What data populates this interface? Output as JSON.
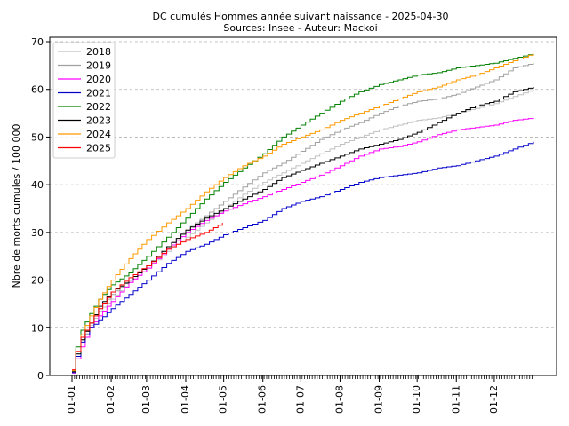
{
  "chart_data": {
    "type": "line",
    "title": "DC cumulés Hommes année suivant naissance  - 2025-04-30",
    "subtitle": "Sources: Insee - Auteur: Mackoi",
    "xlabel": "",
    "ylabel": "Nbre de morts cumules / 100 000",
    "xlim": [
      0,
      365
    ],
    "ylim": [
      0,
      70
    ],
    "yticks": [
      0,
      10,
      20,
      30,
      40,
      50,
      60,
      70
    ],
    "xticks": [
      {
        "day": 0,
        "label": "01-01"
      },
      {
        "day": 31,
        "label": "01-02"
      },
      {
        "day": 59,
        "label": "01-03"
      },
      {
        "day": 90,
        "label": "01-04"
      },
      {
        "day": 120,
        "label": "01-05"
      },
      {
        "day": 151,
        "label": "01-06"
      },
      {
        "day": 181,
        "label": "01-07"
      },
      {
        "day": 212,
        "label": "01-08"
      },
      {
        "day": 243,
        "label": "01-09"
      },
      {
        "day": 273,
        "label": "01-10"
      },
      {
        "day": 304,
        "label": "01-11"
      },
      {
        "day": 334,
        "label": "01-12"
      }
    ],
    "grid": "y-dashed",
    "legend_position": "top-left",
    "series": [
      {
        "name": "2018",
        "color": "#c0c0c0",
        "points": [
          [
            0,
            0.5
          ],
          [
            3,
            4
          ],
          [
            7,
            7
          ],
          [
            14,
            10.5
          ],
          [
            21,
            13.5
          ],
          [
            31,
            16
          ],
          [
            45,
            19.5
          ],
          [
            59,
            22.5
          ],
          [
            75,
            26
          ],
          [
            90,
            29
          ],
          [
            105,
            32
          ],
          [
            120,
            35
          ],
          [
            135,
            38
          ],
          [
            151,
            40.5
          ],
          [
            166,
            42.5
          ],
          [
            181,
            44.5
          ],
          [
            196,
            46.5
          ],
          [
            212,
            48.5
          ],
          [
            227,
            50
          ],
          [
            243,
            51.5
          ],
          [
            258,
            52.5
          ],
          [
            273,
            53.5
          ],
          [
            289,
            54
          ],
          [
            304,
            55
          ],
          [
            319,
            56
          ],
          [
            334,
            57
          ],
          [
            349,
            58.5
          ],
          [
            365,
            60
          ]
        ]
      },
      {
        "name": "2019",
        "color": "#a0a0a0",
        "points": [
          [
            0,
            0.8
          ],
          [
            3,
            4.5
          ],
          [
            7,
            7.5
          ],
          [
            14,
            11
          ],
          [
            21,
            14
          ],
          [
            31,
            17
          ],
          [
            45,
            20
          ],
          [
            59,
            23
          ],
          [
            75,
            27
          ],
          [
            90,
            30.5
          ],
          [
            105,
            33.5
          ],
          [
            120,
            36.5
          ],
          [
            135,
            39.5
          ],
          [
            151,
            42.5
          ],
          [
            166,
            44.5
          ],
          [
            181,
            47
          ],
          [
            196,
            49.5
          ],
          [
            212,
            51.5
          ],
          [
            227,
            53
          ],
          [
            243,
            55
          ],
          [
            258,
            56.5
          ],
          [
            273,
            57.5
          ],
          [
            289,
            58
          ],
          [
            304,
            59
          ],
          [
            319,
            60.5
          ],
          [
            334,
            62
          ],
          [
            349,
            64.5
          ],
          [
            365,
            65.5
          ]
        ]
      },
      {
        "name": "2020",
        "color": "#ff00ff",
        "points": [
          [
            0,
            0.5
          ],
          [
            3,
            3.5
          ],
          [
            7,
            6
          ],
          [
            14,
            10
          ],
          [
            21,
            12.5
          ],
          [
            31,
            15.5
          ],
          [
            45,
            19.5
          ],
          [
            59,
            22.5
          ],
          [
            75,
            26.5
          ],
          [
            90,
            30
          ],
          [
            105,
            32.5
          ],
          [
            120,
            34.5
          ],
          [
            135,
            36
          ],
          [
            151,
            37.5
          ],
          [
            166,
            39
          ],
          [
            181,
            40.5
          ],
          [
            196,
            42
          ],
          [
            212,
            44
          ],
          [
            227,
            46
          ],
          [
            243,
            47.5
          ],
          [
            258,
            48
          ],
          [
            273,
            49
          ],
          [
            289,
            50.5
          ],
          [
            304,
            51.5
          ],
          [
            319,
            52
          ],
          [
            334,
            52.5
          ],
          [
            349,
            53.5
          ],
          [
            365,
            54
          ]
        ]
      },
      {
        "name": "2021",
        "color": "#0000cc",
        "points": [
          [
            0,
            0.6
          ],
          [
            3,
            4
          ],
          [
            7,
            7
          ],
          [
            14,
            10
          ],
          [
            21,
            11.5
          ],
          [
            31,
            14
          ],
          [
            45,
            17
          ],
          [
            59,
            20
          ],
          [
            75,
            23.5
          ],
          [
            90,
            26
          ],
          [
            105,
            27.5
          ],
          [
            120,
            29.5
          ],
          [
            135,
            31
          ],
          [
            151,
            32.5
          ],
          [
            166,
            35
          ],
          [
            181,
            36.5
          ],
          [
            196,
            37.5
          ],
          [
            212,
            39
          ],
          [
            227,
            40.5
          ],
          [
            243,
            41.5
          ],
          [
            258,
            42
          ],
          [
            273,
            42.5
          ],
          [
            289,
            43.5
          ],
          [
            304,
            44
          ],
          [
            319,
            45
          ],
          [
            334,
            46
          ],
          [
            349,
            47.5
          ],
          [
            365,
            49
          ]
        ]
      },
      {
        "name": "2022",
        "color": "#008000",
        "points": [
          [
            0,
            1
          ],
          [
            3,
            6
          ],
          [
            7,
            9.5
          ],
          [
            14,
            13
          ],
          [
            21,
            16
          ],
          [
            31,
            19
          ],
          [
            45,
            21.5
          ],
          [
            59,
            25
          ],
          [
            75,
            29
          ],
          [
            90,
            33
          ],
          [
            105,
            37
          ],
          [
            120,
            40.5
          ],
          [
            135,
            43.5
          ],
          [
            151,
            46.5
          ],
          [
            166,
            50
          ],
          [
            181,
            52.5
          ],
          [
            196,
            55
          ],
          [
            212,
            57.5
          ],
          [
            227,
            59.5
          ],
          [
            243,
            61
          ],
          [
            258,
            62
          ],
          [
            273,
            63
          ],
          [
            289,
            63.5
          ],
          [
            304,
            64.5
          ],
          [
            319,
            65
          ],
          [
            334,
            65.5
          ],
          [
            349,
            66.5
          ],
          [
            365,
            67.5
          ]
        ]
      },
      {
        "name": "2023",
        "color": "#000000",
        "points": [
          [
            0,
            0.8
          ],
          [
            3,
            4.5
          ],
          [
            7,
            7.5
          ],
          [
            14,
            11
          ],
          [
            21,
            14.5
          ],
          [
            31,
            17.5
          ],
          [
            45,
            20
          ],
          [
            59,
            23
          ],
          [
            75,
            27
          ],
          [
            90,
            30.5
          ],
          [
            105,
            33
          ],
          [
            120,
            35
          ],
          [
            135,
            37
          ],
          [
            151,
            39
          ],
          [
            166,
            41.5
          ],
          [
            181,
            43
          ],
          [
            196,
            44.5
          ],
          [
            212,
            46
          ],
          [
            227,
            47.5
          ],
          [
            243,
            48.5
          ],
          [
            258,
            49.5
          ],
          [
            273,
            51
          ],
          [
            289,
            53
          ],
          [
            304,
            55
          ],
          [
            319,
            56.5
          ],
          [
            334,
            57.5
          ],
          [
            349,
            59.5
          ],
          [
            365,
            60.5
          ]
        ]
      },
      {
        "name": "2024",
        "color": "#ff9900",
        "points": [
          [
            0,
            1
          ],
          [
            3,
            5
          ],
          [
            7,
            8.5
          ],
          [
            14,
            12.5
          ],
          [
            21,
            16
          ],
          [
            31,
            20
          ],
          [
            45,
            24.5
          ],
          [
            59,
            28.5
          ],
          [
            75,
            32
          ],
          [
            90,
            35
          ],
          [
            105,
            38.5
          ],
          [
            120,
            41.5
          ],
          [
            135,
            44
          ],
          [
            151,
            46
          ],
          [
            166,
            48.5
          ],
          [
            181,
            50
          ],
          [
            196,
            51.5
          ],
          [
            212,
            53.5
          ],
          [
            227,
            55
          ],
          [
            243,
            56.5
          ],
          [
            258,
            58
          ],
          [
            273,
            59.5
          ],
          [
            289,
            60.5
          ],
          [
            304,
            62
          ],
          [
            319,
            63
          ],
          [
            334,
            64.5
          ],
          [
            349,
            66
          ],
          [
            365,
            67.5
          ]
        ]
      },
      {
        "name": "2025",
        "color": "#ff0000",
        "points": [
          [
            0,
            1.2
          ],
          [
            3,
            5
          ],
          [
            7,
            8
          ],
          [
            14,
            11
          ],
          [
            21,
            14
          ],
          [
            31,
            17.5
          ],
          [
            45,
            20.5
          ],
          [
            59,
            23
          ],
          [
            75,
            26.5
          ],
          [
            90,
            28.5
          ],
          [
            105,
            30
          ],
          [
            112,
            31
          ],
          [
            119,
            32
          ]
        ]
      }
    ]
  }
}
